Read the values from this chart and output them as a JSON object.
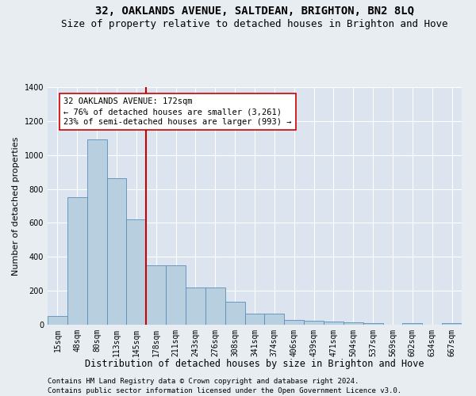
{
  "title": "32, OAKLANDS AVENUE, SALTDEAN, BRIGHTON, BN2 8LQ",
  "subtitle": "Size of property relative to detached houses in Brighton and Hove",
  "xlabel": "Distribution of detached houses by size in Brighton and Hove",
  "ylabel": "Number of detached properties",
  "footer1": "Contains HM Land Registry data © Crown copyright and database right 2024.",
  "footer2": "Contains public sector information licensed under the Open Government Licence v3.0.",
  "annotation_line1": "32 OAKLANDS AVENUE: 172sqm",
  "annotation_line2": "← 76% of detached houses are smaller (3,261)",
  "annotation_line3": "23% of semi-detached houses are larger (993) →",
  "bar_labels": [
    "15sqm",
    "48sqm",
    "80sqm",
    "113sqm",
    "145sqm",
    "178sqm",
    "211sqm",
    "243sqm",
    "276sqm",
    "308sqm",
    "341sqm",
    "374sqm",
    "406sqm",
    "439sqm",
    "471sqm",
    "504sqm",
    "537sqm",
    "569sqm",
    "602sqm",
    "634sqm",
    "667sqm"
  ],
  "bar_values": [
    50,
    750,
    1090,
    865,
    620,
    350,
    350,
    220,
    220,
    135,
    65,
    65,
    30,
    25,
    20,
    15,
    10,
    0,
    10,
    0,
    10
  ],
  "bar_color": "#b8cfe0",
  "bar_edge_color": "#5b8db8",
  "vline_color": "#cc0000",
  "ylim": [
    0,
    1400
  ],
  "yticks": [
    0,
    200,
    400,
    600,
    800,
    1000,
    1200,
    1400
  ],
  "bg_color": "#e8edf2",
  "plot_bg_color": "#dce5ef",
  "grid_color": "#ffffff",
  "annotation_box_bg": "#ffffff",
  "annotation_box_edge": "#cc0000",
  "title_fontsize": 10,
  "subtitle_fontsize": 9,
  "xlabel_fontsize": 8.5,
  "ylabel_fontsize": 8,
  "annotation_fontsize": 7.5,
  "tick_fontsize": 7,
  "footer_fontsize": 6.5
}
